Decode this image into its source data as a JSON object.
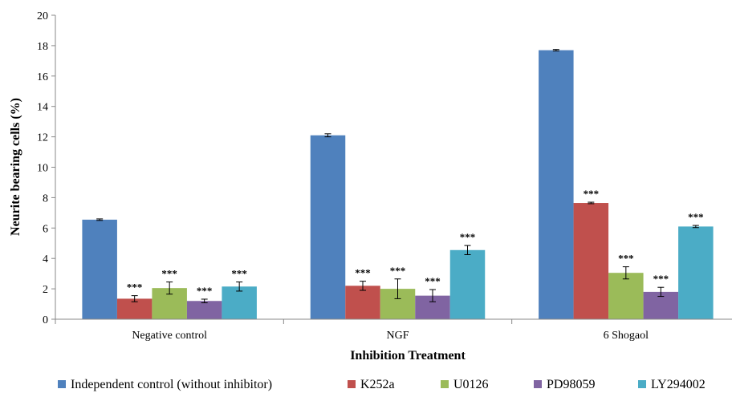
{
  "chart_data": {
    "type": "bar",
    "title": "",
    "xlabel": "Inhibition Treatment",
    "ylabel": "Neurite bearing cells (%)",
    "ylim": [
      0,
      20
    ],
    "yticks": [
      0,
      2,
      4,
      6,
      8,
      10,
      12,
      14,
      16,
      18,
      20
    ],
    "grid": false,
    "legend_position": "bottom",
    "categories": [
      "Negative control",
      "NGF",
      "6 Shogaol"
    ],
    "significance_marker": "***",
    "series": [
      {
        "name": "Independent control (without inhibitor)",
        "color": "#4F81BD",
        "values": [
          6.55,
          12.1,
          17.7
        ],
        "errors": [
          0.05,
          0.1,
          0.05
        ],
        "significant": [
          false,
          false,
          false
        ]
      },
      {
        "name": "K252a",
        "color": "#C0504D",
        "values": [
          1.35,
          2.2,
          7.65
        ],
        "errors": [
          0.2,
          0.3,
          0.05
        ],
        "significant": [
          true,
          true,
          true
        ]
      },
      {
        "name": "U0126",
        "color": "#9BBB59",
        "values": [
          2.05,
          2.0,
          3.05
        ],
        "errors": [
          0.4,
          0.65,
          0.4
        ],
        "significant": [
          true,
          true,
          true
        ]
      },
      {
        "name": "PD98059",
        "color": "#8064A2",
        "values": [
          1.2,
          1.55,
          1.8
        ],
        "errors": [
          0.12,
          0.4,
          0.3
        ],
        "significant": [
          true,
          true,
          true
        ]
      },
      {
        "name": "LY294002",
        "color": "#4BACC6",
        "values": [
          2.15,
          4.55,
          6.1
        ],
        "errors": [
          0.3,
          0.3,
          0.07
        ],
        "significant": [
          true,
          true,
          true
        ]
      }
    ]
  }
}
